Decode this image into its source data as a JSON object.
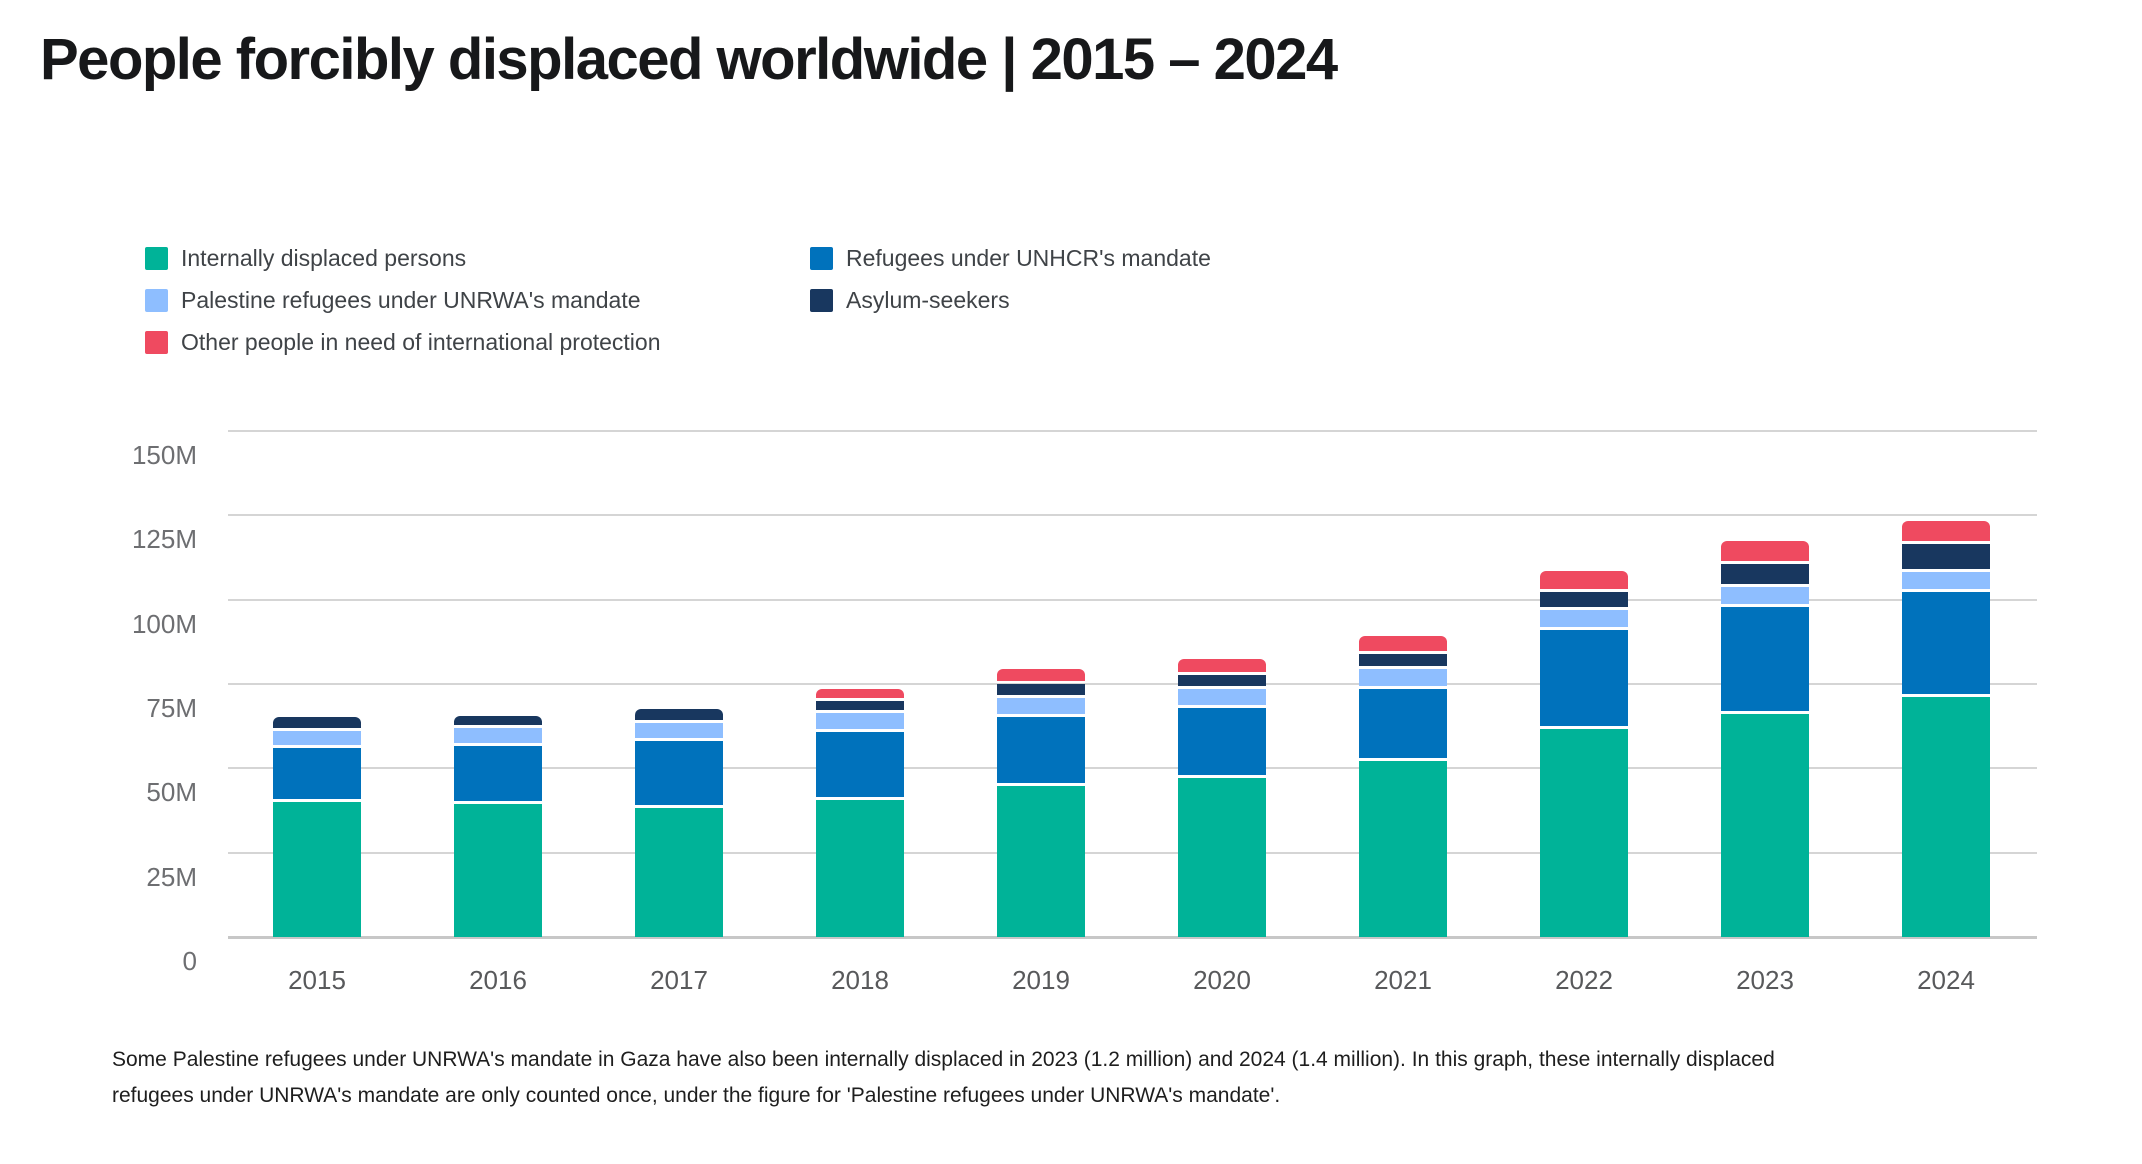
{
  "title": "People forcibly displaced worldwide | 2015 – 2024",
  "legend": {
    "columns": [
      [
        "idp",
        "unrwa",
        "other"
      ],
      [
        "refugees",
        "asylum"
      ]
    ]
  },
  "chart_data": {
    "type": "bar",
    "stacked": true,
    "stack_order": "bottom-to-top",
    "title": "People forcibly displaced worldwide | 2015 – 2024",
    "unit": "millions of people",
    "categories": [
      "2015",
      "2016",
      "2017",
      "2018",
      "2019",
      "2020",
      "2021",
      "2022",
      "2023",
      "2024"
    ],
    "ylim": [
      0,
      150
    ],
    "grid": true,
    "legend_position": "top-left",
    "y_ticks": [
      {
        "value": 0,
        "label": "0"
      },
      {
        "value": 25,
        "label": "25M"
      },
      {
        "value": 50,
        "label": "50M"
      },
      {
        "value": 75,
        "label": "75M"
      },
      {
        "value": 100,
        "label": "100M"
      },
      {
        "value": 125,
        "label": "125M"
      },
      {
        "value": 150,
        "label": "150M"
      }
    ],
    "series": [
      {
        "key": "idp",
        "name": "Internally displaced persons",
        "color": "#00B398",
        "values": [
          40.8,
          40.3,
          39.1,
          41.4,
          45.7,
          48.0,
          53.2,
          62.5,
          67.1,
          72.1
        ]
      },
      {
        "key": "refugees",
        "name": "Refugees under UNHCR's mandate",
        "color": "#0072BC",
        "values": [
          16.1,
          17.2,
          19.9,
          20.4,
          20.4,
          20.7,
          21.3,
          29.4,
          31.6,
          31.0
        ]
      },
      {
        "key": "unrwa",
        "name": "Palestine refugees under UNRWA's mandate",
        "color": "#8EBEFF",
        "values": [
          5.2,
          5.3,
          5.4,
          5.5,
          5.6,
          5.7,
          5.8,
          5.9,
          6.0,
          5.9
        ]
      },
      {
        "key": "asylum",
        "name": "Asylum-seekers",
        "color": "#18375F",
        "values": [
          3.2,
          2.8,
          3.1,
          3.5,
          4.1,
          4.2,
          4.6,
          5.4,
          6.9,
          8.4
        ]
      },
      {
        "key": "other",
        "name": "Other people in need of international protection",
        "color": "#EF4A60",
        "values": [
          0,
          0,
          0,
          2.6,
          3.6,
          3.9,
          4.4,
          5.2,
          5.8,
          5.9
        ]
      }
    ]
  },
  "footnote": {
    "line1": "Some Palestine refugees under UNRWA's mandate in Gaza have also been internally displaced in 2023 (1.2 million) and 2024 (1.4 million). In this graph, these internally displaced",
    "line2": "refugees under UNRWA's mandate are only counted once, under the figure for 'Palestine refugees under UNRWA's mandate'."
  },
  "colors": {
    "background": "#FFFFFF",
    "gridline": "#D5D5D5",
    "baseline": "#C7C7C7",
    "y_axis_text": "#6D6E71",
    "x_axis_text": "#58595B",
    "legend_text": "#3F4347",
    "title_text": "#17181A",
    "footnote_text": "#1E1E1E"
  }
}
